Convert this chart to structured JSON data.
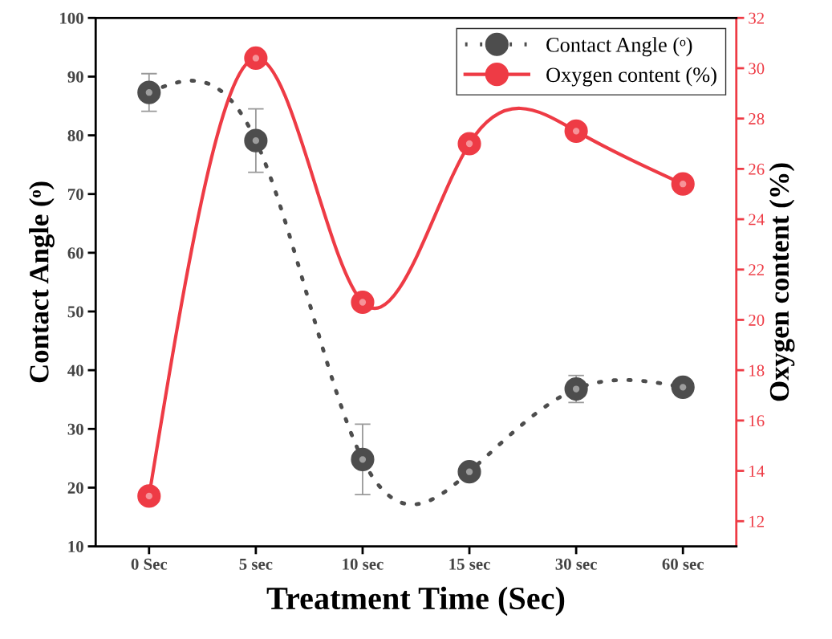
{
  "chart_data": {
    "type": "line",
    "xlabel": "Treatment Time (Sec)",
    "ylabel": "Contact Angle (ᵒ)",
    "y2label": "Oxygen content (%)",
    "categories": [
      "0 Sec",
      "5 sec",
      "10 sec",
      "15 sec",
      "30 sec",
      "60 sec"
    ],
    "series": [
      {
        "name": "Contact Angle (ᵒ)",
        "color": "#4d4d4d",
        "values": [
          87.3,
          79.1,
          24.8,
          22.7,
          36.8,
          37.1
        ],
        "errors": [
          3.2,
          5.4,
          6.0,
          null,
          2.3,
          null
        ],
        "line_style": "dotted",
        "marker": "circle"
      },
      {
        "name": "Oxygen content (%)",
        "color": "#ee3b45",
        "values": [
          13.0,
          30.4,
          20.7,
          27.0,
          27.5,
          25.4
        ],
        "axis": "y2",
        "line_style": "solid",
        "marker": "circle"
      }
    ],
    "ylim": [
      10,
      100
    ],
    "yticks": [
      10,
      20,
      30,
      40,
      50,
      60,
      70,
      80,
      90,
      100
    ],
    "y2lim": [
      11,
      32
    ],
    "y2ticks": [
      12,
      14,
      16,
      18,
      20,
      22,
      24,
      26,
      28,
      30,
      32
    ],
    "grid": false,
    "legend": "top right"
  }
}
